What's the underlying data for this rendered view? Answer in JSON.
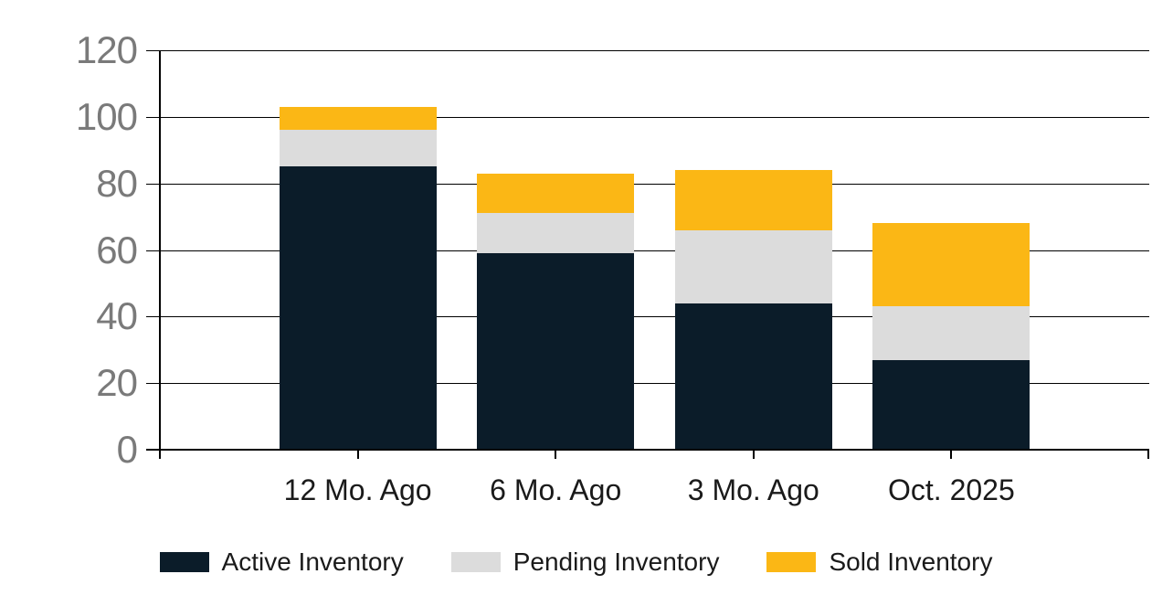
{
  "chart_data": {
    "type": "bar",
    "stacked": true,
    "title": "",
    "xlabel": "",
    "ylabel": "",
    "categories": [
      "12 Mo. Ago",
      "6 Mo. Ago",
      "3 Mo. Ago",
      "Oct. 2025"
    ],
    "series": [
      {
        "name": "Active Inventory",
        "color": "#0b1c29",
        "values": [
          85,
          59,
          44,
          27
        ]
      },
      {
        "name": "Pending Inventory",
        "color": "#dcdcdc",
        "values": [
          11,
          12,
          22,
          16
        ]
      },
      {
        "name": "Sold Inventory",
        "color": "#fbb715",
        "values": [
          7,
          12,
          18,
          25
        ]
      }
    ],
    "stack_totals": [
      103,
      83,
      84,
      68
    ],
    "ylim": [
      0,
      120
    ],
    "yticks": [
      0,
      20,
      40,
      60,
      80,
      100,
      120
    ],
    "grid": "horizontal",
    "legend_position": "bottom",
    "colors": {
      "background": "#ffffff",
      "gridline": "#000000",
      "axis": "#000000",
      "y_tick_label": "#7a7a7a",
      "x_tick_label": "#1a1a1a",
      "legend_label": "#1a1a1a"
    }
  }
}
